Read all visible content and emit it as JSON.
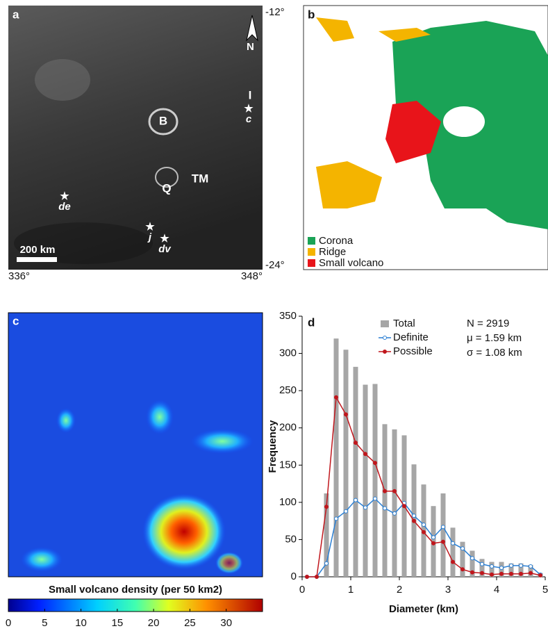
{
  "panel_a": {
    "label": "a",
    "features": [
      "B",
      "Q",
      "TM",
      "I"
    ],
    "sites": [
      "de",
      "j",
      "dv",
      "c"
    ],
    "scale_bar": "200 km",
    "north": "N",
    "lat_top": "-12°",
    "lat_bottom": "-24°",
    "lon_left": "336°",
    "lon_right": "348°"
  },
  "panel_b": {
    "label": "b",
    "legend": [
      {
        "name": "Corona",
        "color": "#1aa356"
      },
      {
        "name": "Ridge",
        "color": "#f4b400"
      },
      {
        "name": "Small volcano",
        "color": "#e8141a"
      }
    ]
  },
  "panel_c": {
    "label": "c",
    "colorbar_title": "Small volcano density (per 50 km2)",
    "clim": [
      0,
      35
    ],
    "cticks": [
      0,
      5,
      10,
      15,
      20,
      25,
      30
    ]
  },
  "chart_data": {
    "type": "bar",
    "panel_label": "d",
    "xlabel": "Diameter (km)",
    "ylabel": "Frequency",
    "x": [
      0.1,
      0.3,
      0.5,
      0.7,
      0.9,
      1.1,
      1.3,
      1.5,
      1.7,
      1.9,
      2.1,
      2.3,
      2.5,
      2.7,
      2.9,
      3.1,
      3.3,
      3.5,
      3.7,
      3.9,
      4.1,
      4.3,
      4.5,
      4.7,
      4.9
    ],
    "series": [
      {
        "name": "Total",
        "type": "bar",
        "color": "#a6a6a6",
        "values": [
          0,
          0,
          112,
          320,
          305,
          282,
          258,
          259,
          205,
          198,
          190,
          151,
          124,
          95,
          112,
          66,
          47,
          35,
          24,
          20,
          20,
          18,
          18,
          16,
          5
        ]
      },
      {
        "name": "Definite",
        "type": "line",
        "color": "#2a7fd4",
        "values": [
          0,
          0,
          18,
          78,
          88,
          103,
          93,
          105,
          92,
          85,
          99,
          82,
          70,
          53,
          67,
          45,
          38,
          25,
          17,
          14,
          12,
          15,
          15,
          14,
          3
        ]
      },
      {
        "name": "Possible",
        "type": "line",
        "color": "#c0161c",
        "values": [
          0,
          0,
          94,
          241,
          218,
          180,
          165,
          153,
          115,
          115,
          95,
          75,
          60,
          45,
          47,
          20,
          10,
          6,
          5,
          3,
          4,
          4,
          4,
          5,
          2
        ]
      }
    ],
    "stats": [
      "N = 2919",
      "μ = 1.59 km",
      "σ = 1.08 km"
    ],
    "xlim": [
      0,
      5
    ],
    "xticks": [
      0,
      1,
      2,
      3,
      4,
      5
    ],
    "ylim": [
      0,
      350
    ],
    "yticks": [
      0,
      50,
      100,
      150,
      200,
      250,
      300,
      350
    ]
  }
}
